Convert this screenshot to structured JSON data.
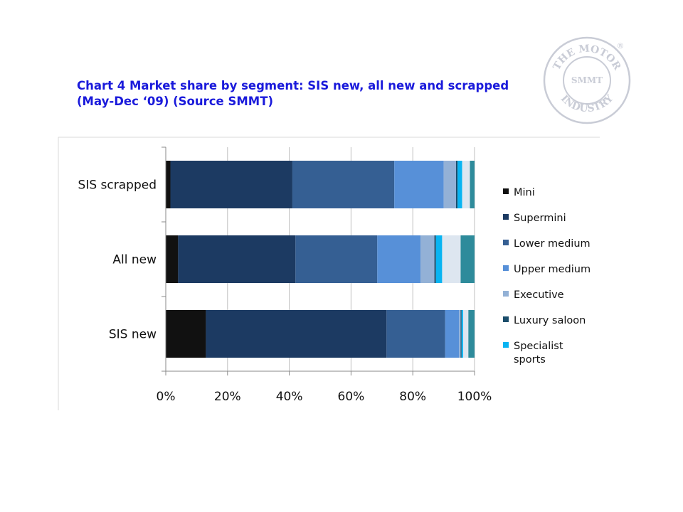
{
  "title": "Chart 4 Market share by segment: SIS new, all new and scrapped (May-Dec ‘09) (Source SMMT)",
  "logo": {
    "top_text": "THE MOTOR",
    "bottom_text": "INDUSTRY",
    "center_text": "SMMT",
    "mark": "®"
  },
  "colors": {
    "Mini": "#111111",
    "Supermini": "#1c3a62",
    "Lower medium": "#355f93",
    "Upper medium": "#5790d8",
    "Executive": "#93b1d6",
    "Luxury saloon": "#1b4d6b",
    "Specialist sports": "#08b4f2",
    "Other": "#dde6f0",
    "Other2": "#2e8b9b"
  },
  "chart_data": {
    "type": "bar",
    "orientation": "horizontal",
    "stacked": "percent",
    "categories": [
      "SIS scrapped",
      "All new",
      "SIS new"
    ],
    "series": [
      {
        "name": "Mini",
        "values": [
          1.5,
          4,
          13
        ]
      },
      {
        "name": "Supermini",
        "values": [
          39.5,
          38,
          58.5
        ]
      },
      {
        "name": "Lower medium",
        "values": [
          33,
          26.5,
          19
        ]
      },
      {
        "name": "Upper medium",
        "values": [
          16,
          14,
          4.5
        ]
      },
      {
        "name": "Executive",
        "values": [
          4,
          4.5,
          0.5
        ]
      },
      {
        "name": "Luxury saloon",
        "values": [
          0.5,
          0.5,
          0.3
        ]
      },
      {
        "name": "Specialist sports",
        "values": [
          1.5,
          2,
          0.5
        ]
      },
      {
        "values": [
          2.5,
          6,
          1.7
        ]
      },
      {
        "values": [
          1.5,
          4.5,
          2
        ]
      }
    ],
    "xlim": [
      0,
      100
    ],
    "x_ticks": [
      "0%",
      "20%",
      "40%",
      "60%",
      "80%",
      "100%"
    ],
    "legend_position": "right",
    "grid": "vertical"
  }
}
